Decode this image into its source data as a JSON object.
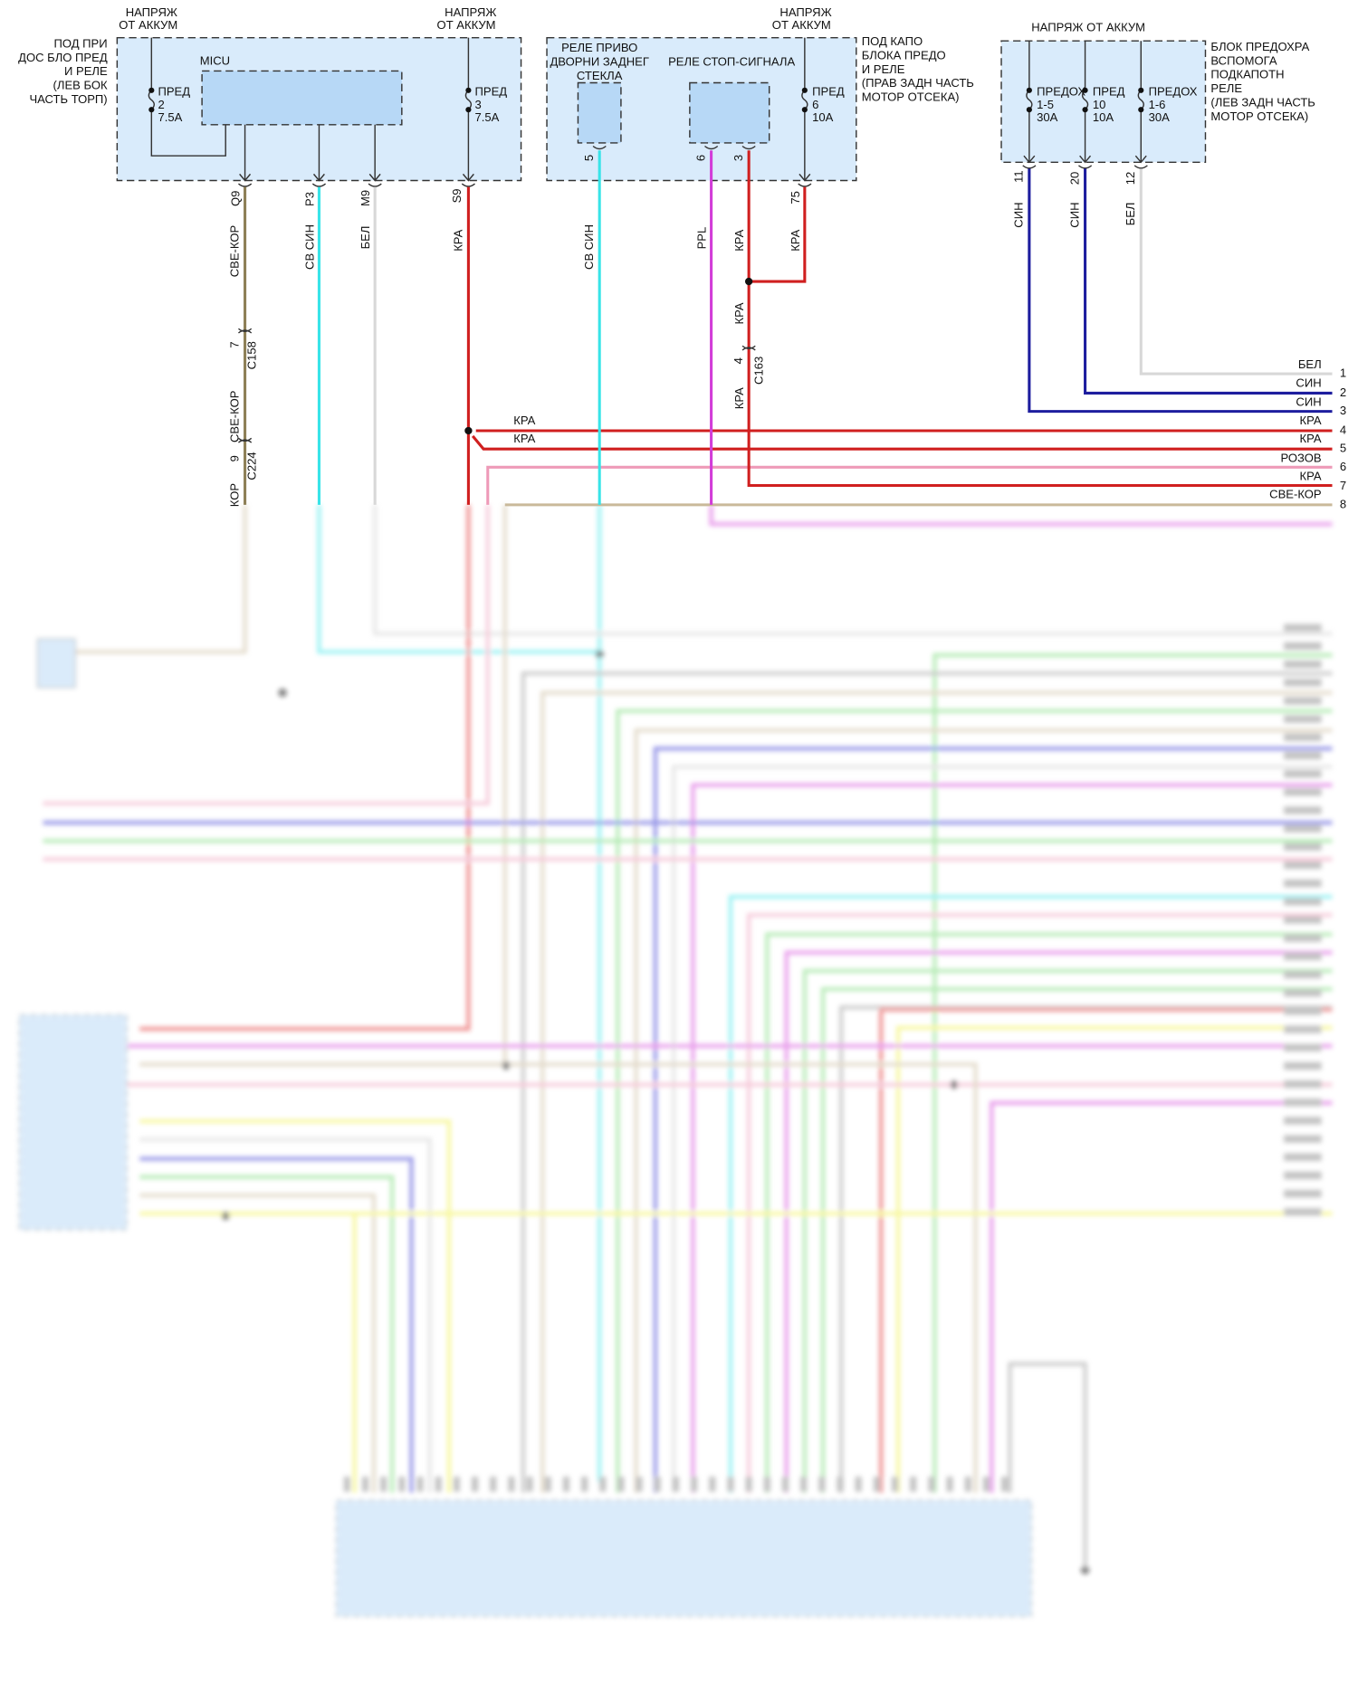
{
  "wire_colors": {
    "red": "#d01f1f",
    "cyan": "#38e4e8",
    "olive": "#8d7f56",
    "white": "#d8d8d8",
    "magenta": "#d23cd8",
    "blue": "#1d1d9e",
    "pink": "#ee9ab8",
    "tan": "#c9b99a",
    "box_fill": "#d9ebfb"
  },
  "left_block": {
    "supply_left": [
      "НАПРЯЖ",
      "ОТ АККУМ"
    ],
    "supply_right": [
      "НАПРЯЖ",
      "ОТ АККУМ"
    ],
    "location": [
      "ПОД ПРИ",
      "ДОС БЛО ПРЕД",
      "И РЕЛЕ",
      "(ЛЕВ БОК",
      "ЧАСТЬ ТОРП)"
    ],
    "module": "MICU",
    "fuse_a": [
      "ПРЕД",
      "2",
      "7.5A"
    ],
    "fuse_b": [
      "ПРЕД",
      "3",
      "7.5A"
    ],
    "pins": [
      "Q9",
      "P3",
      "M9",
      "S9"
    ],
    "wires": [
      "СВЕ-КОР",
      "СВ СИН",
      "БЕЛ",
      "КРА"
    ],
    "c158": {
      "pin": "7",
      "name": "C158"
    },
    "c224": {
      "pin": "9",
      "name": "C224"
    },
    "wire_after_c158": "СВЕ-КОР",
    "wire_after_c224": "КОР",
    "splice_labels": [
      "КРА",
      "КРА"
    ]
  },
  "mid_block": {
    "supply": [
      "НАПРЯЖ",
      "ОТ АККУМ"
    ],
    "wiper_relay": [
      "РЕЛЕ ПРИВО",
      "ДВОРНИ ЗАДНЕГ",
      "СТЕКЛА"
    ],
    "brake_relay": "РЕЛЕ СТОП-СИГНАЛА",
    "fuse": [
      "ПРЕД",
      "6",
      "10A"
    ],
    "location": [
      "ПОД КАПО",
      "БЛОКА ПРЕДО",
      "И РЕЛЕ",
      "(ПРАВ ЗАДН ЧАСТЬ",
      "МОТОР ОТСЕКА)"
    ],
    "pins": [
      "5",
      "6",
      "3",
      "75"
    ],
    "wires": [
      "СВ СИН",
      "PPL",
      "КРА",
      "КРА"
    ],
    "c163": {
      "pin": "4",
      "name": "C163"
    },
    "c163_wires": [
      "КРА",
      "КРА"
    ]
  },
  "right_block": {
    "supply": "НАПРЯЖ ОТ АККУМ",
    "fuses": [
      [
        "ПРЕДОХ",
        "1-5",
        "30A"
      ],
      [
        "ПРЕД",
        "10",
        "10A"
      ],
      [
        "ПРЕДОХ",
        "1-6",
        "30A"
      ]
    ],
    "location": [
      "БЛОК ПРЕДОХРА",
      "ВСПОМОГА",
      "ПОДКАПОТН",
      "РЕЛЕ",
      "(ЛЕВ ЗАДН ЧАСТЬ",
      "МОТОР ОТСЕКА)"
    ],
    "pins": [
      "11",
      "20",
      "12"
    ],
    "wires": [
      "СИН",
      "СИН",
      "БЕЛ"
    ]
  },
  "bus": [
    {
      "num": "1",
      "label": "БЕЛ"
    },
    {
      "num": "2",
      "label": "СИН"
    },
    {
      "num": "3",
      "label": "СИН"
    },
    {
      "num": "4",
      "label": "КРА"
    },
    {
      "num": "5",
      "label": "КРА"
    },
    {
      "num": "6",
      "label": "РОЗОВ"
    },
    {
      "num": "7",
      "label": "КРА"
    },
    {
      "num": "8",
      "label": "СВЕ-КОР"
    }
  ]
}
